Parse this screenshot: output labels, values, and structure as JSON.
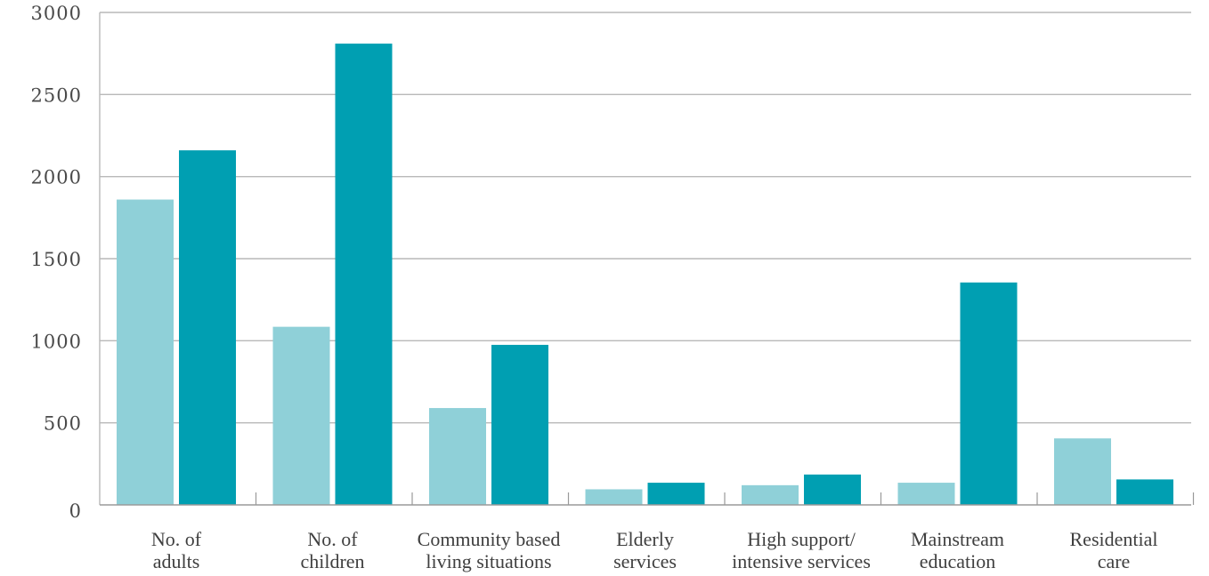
{
  "chart_data": {
    "type": "bar",
    "categories": [
      [
        "No. of",
        "adults"
      ],
      [
        "No. of",
        "children"
      ],
      [
        "Community based",
        "living situations"
      ],
      [
        "Elderly",
        "services"
      ],
      [
        "High support/",
        "intensive services"
      ],
      [
        "Mainstream",
        "education"
      ],
      [
        "Residential",
        "care"
      ]
    ],
    "series": [
      {
        "color": "#8fd0d8",
        "values": [
          1860,
          1085,
          590,
          95,
          120,
          135,
          405
        ]
      },
      {
        "color": "#009fb2",
        "values": [
          2160,
          2810,
          975,
          135,
          185,
          1355,
          155
        ]
      }
    ],
    "ylim": [
      0,
      3000
    ],
    "yticks": [
      0,
      500,
      1000,
      1500,
      2000,
      2500,
      3000
    ],
    "ytick_labels": [
      "0",
      "500",
      "1000",
      "1500",
      "2000",
      "2500",
      "3000"
    ],
    "grid": true,
    "title": "",
    "xlabel": "",
    "ylabel": ""
  }
}
